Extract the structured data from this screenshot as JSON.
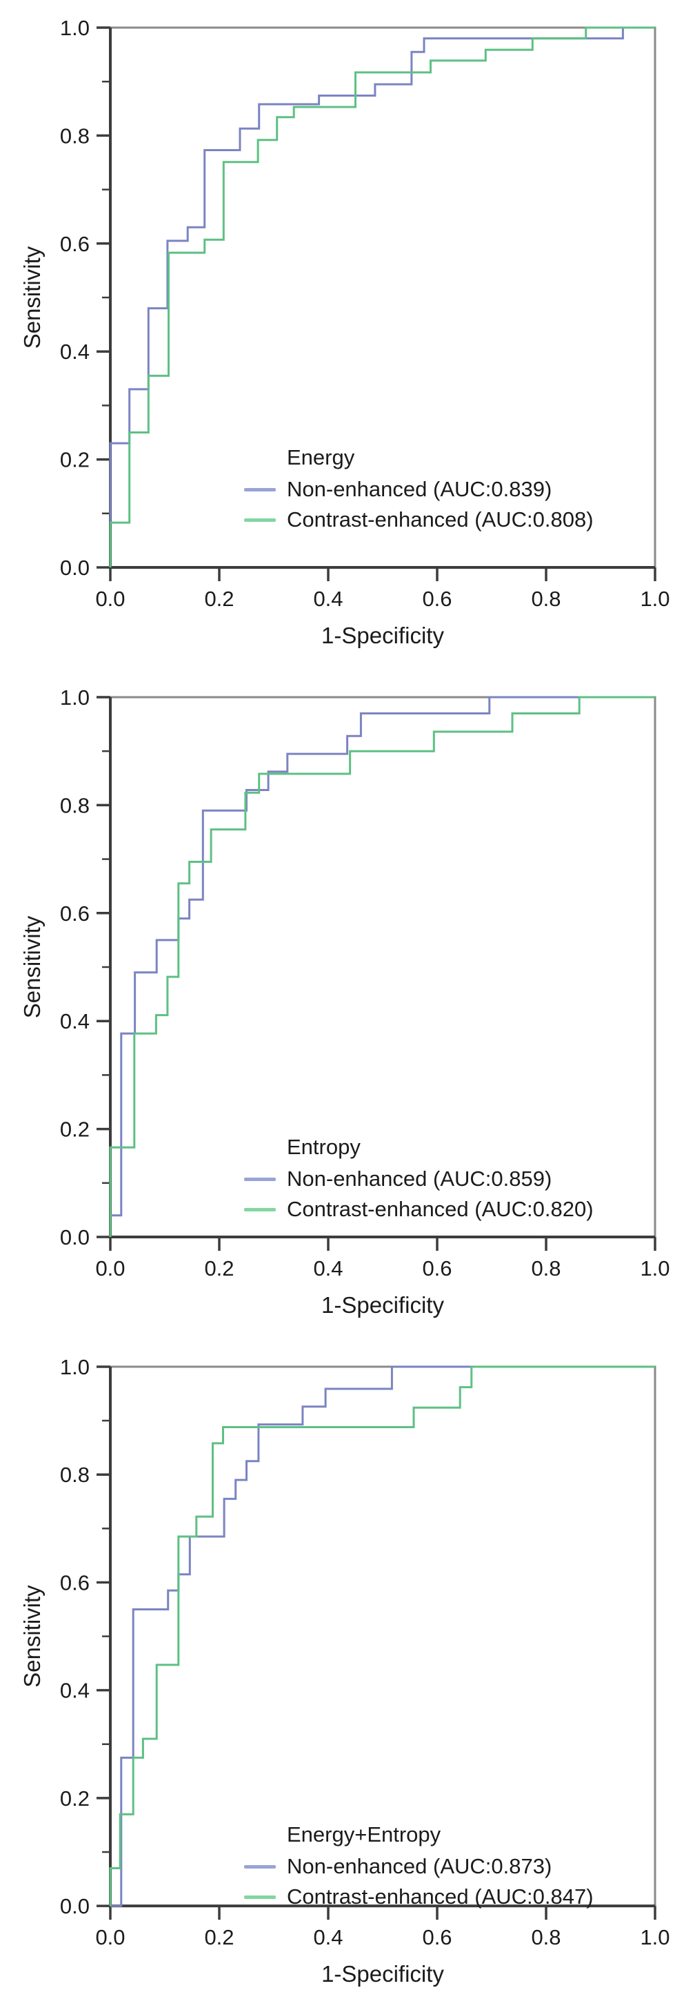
{
  "style": {
    "frame_color": "#8a8a8a",
    "axis_color": "#3c3c3c",
    "text_color": "#1b1b1b",
    "background": "#ffffff",
    "non_enhanced_color": "#7b84c2",
    "contrast_enhanced_color": "#5ec084"
  },
  "chart_data": [
    {
      "type": "line",
      "subtype": "roc_step_curve",
      "title": "Energy",
      "xlabel": "1-Specificity",
      "ylabel": "Sensitivity",
      "x_range": [
        0,
        1
      ],
      "y_range": [
        0,
        1
      ],
      "x_ticks": [
        "0.0",
        "0.2",
        "0.4",
        "0.6",
        "0.8",
        "1.0"
      ],
      "y_ticks": [
        "0.0",
        "0.2",
        "0.4",
        "0.6",
        "0.8",
        "1.0"
      ],
      "y_minor_ticks": [
        0.1,
        0.3,
        0.5,
        0.7,
        0.9
      ],
      "grid": false,
      "legend_position": "inside-lower-right",
      "series": [
        {
          "name": "Non-enhanced",
          "auc": 0.839,
          "label": "Non-enhanced (AUC:0.839)",
          "color": "#7b84c2",
          "legend_color": "#9aa3d8",
          "points": [
            [
              0,
              0
            ],
            [
              0,
              0.23
            ],
            [
              0.035,
              0.23
            ],
            [
              0.035,
              0.33
            ],
            [
              0.07,
              0.33
            ],
            [
              0.07,
              0.48
            ],
            [
              0.105,
              0.48
            ],
            [
              0.105,
              0.605
            ],
            [
              0.142,
              0.605
            ],
            [
              0.142,
              0.63
            ],
            [
              0.173,
              0.63
            ],
            [
              0.173,
              0.773
            ],
            [
              0.238,
              0.773
            ],
            [
              0.238,
              0.813
            ],
            [
              0.273,
              0.813
            ],
            [
              0.273,
              0.858
            ],
            [
              0.383,
              0.858
            ],
            [
              0.383,
              0.874
            ],
            [
              0.486,
              0.874
            ],
            [
              0.486,
              0.895
            ],
            [
              0.553,
              0.895
            ],
            [
              0.553,
              0.955
            ],
            [
              0.576,
              0.955
            ],
            [
              0.576,
              0.98
            ],
            [
              0.941,
              0.98
            ],
            [
              0.941,
              1
            ],
            [
              1,
              1
            ]
          ]
        },
        {
          "name": "Contrast-enhanced",
          "auc": 0.808,
          "label": "Contrast-enhanced (AUC:0.808)",
          "color": "#5ec084",
          "legend_color": "#82d6a2",
          "points": [
            [
              0,
              0
            ],
            [
              0,
              0.083
            ],
            [
              0.035,
              0.083
            ],
            [
              0.035,
              0.25
            ],
            [
              0.07,
              0.25
            ],
            [
              0.07,
              0.355
            ],
            [
              0.107,
              0.355
            ],
            [
              0.107,
              0.583
            ],
            [
              0.173,
              0.583
            ],
            [
              0.173,
              0.607
            ],
            [
              0.208,
              0.607
            ],
            [
              0.208,
              0.751
            ],
            [
              0.271,
              0.751
            ],
            [
              0.271,
              0.792
            ],
            [
              0.306,
              0.792
            ],
            [
              0.306,
              0.834
            ],
            [
              0.337,
              0.834
            ],
            [
              0.337,
              0.853
            ],
            [
              0.45,
              0.853
            ],
            [
              0.45,
              0.917
            ],
            [
              0.588,
              0.917
            ],
            [
              0.588,
              0.939
            ],
            [
              0.689,
              0.939
            ],
            [
              0.689,
              0.959
            ],
            [
              0.775,
              0.959
            ],
            [
              0.775,
              0.98
            ],
            [
              0.873,
              0.98
            ],
            [
              0.873,
              1
            ],
            [
              1,
              1
            ]
          ]
        }
      ]
    },
    {
      "type": "line",
      "subtype": "roc_step_curve",
      "title": "Entropy",
      "xlabel": "1-Specificity",
      "ylabel": "Sensitivity",
      "x_range": [
        0,
        1
      ],
      "y_range": [
        0,
        1
      ],
      "x_ticks": [
        "0.0",
        "0.2",
        "0.4",
        "0.6",
        "0.8",
        "1.0"
      ],
      "y_ticks": [
        "0.0",
        "0.2",
        "0.4",
        "0.6",
        "0.8",
        "1.0"
      ],
      "y_minor_ticks": [
        0.1,
        0.3,
        0.5,
        0.7,
        0.9
      ],
      "grid": false,
      "legend_position": "inside-lower-right",
      "series": [
        {
          "name": "Non-enhanced",
          "auc": 0.859,
          "label": "Non-enhanced (AUC:0.859)",
          "color": "#7b84c2",
          "legend_color": "#9aa3d8",
          "points": [
            [
              0,
              0
            ],
            [
              0,
              0.04
            ],
            [
              0.02,
              0.04
            ],
            [
              0.02,
              0.377
            ],
            [
              0.045,
              0.377
            ],
            [
              0.045,
              0.49
            ],
            [
              0.085,
              0.49
            ],
            [
              0.085,
              0.55
            ],
            [
              0.125,
              0.55
            ],
            [
              0.125,
              0.59
            ],
            [
              0.145,
              0.59
            ],
            [
              0.145,
              0.625
            ],
            [
              0.17,
              0.625
            ],
            [
              0.17,
              0.79
            ],
            [
              0.25,
              0.79
            ],
            [
              0.25,
              0.828
            ],
            [
              0.29,
              0.828
            ],
            [
              0.29,
              0.862
            ],
            [
              0.325,
              0.862
            ],
            [
              0.325,
              0.895
            ],
            [
              0.435,
              0.895
            ],
            [
              0.435,
              0.928
            ],
            [
              0.46,
              0.928
            ],
            [
              0.46,
              0.97
            ],
            [
              0.696,
              0.97
            ],
            [
              0.696,
              1
            ],
            [
              1,
              1
            ]
          ]
        },
        {
          "name": "Contrast-enhanced",
          "auc": 0.82,
          "label": "Contrast-enhanced (AUC:0.820)",
          "color": "#5ec084",
          "legend_color": "#82d6a2",
          "points": [
            [
              0,
              0
            ],
            [
              0,
              0.166
            ],
            [
              0.044,
              0.166
            ],
            [
              0.044,
              0.377
            ],
            [
              0.084,
              0.377
            ],
            [
              0.084,
              0.411
            ],
            [
              0.105,
              0.411
            ],
            [
              0.105,
              0.482
            ],
            [
              0.125,
              0.482
            ],
            [
              0.125,
              0.655
            ],
            [
              0.145,
              0.655
            ],
            [
              0.145,
              0.695
            ],
            [
              0.185,
              0.695
            ],
            [
              0.185,
              0.755
            ],
            [
              0.248,
              0.755
            ],
            [
              0.248,
              0.823
            ],
            [
              0.273,
              0.823
            ],
            [
              0.273,
              0.858
            ],
            [
              0.44,
              0.858
            ],
            [
              0.44,
              0.9
            ],
            [
              0.594,
              0.9
            ],
            [
              0.594,
              0.936
            ],
            [
              0.738,
              0.936
            ],
            [
              0.738,
              0.97
            ],
            [
              0.861,
              0.97
            ],
            [
              0.861,
              1
            ],
            [
              1,
              1
            ]
          ]
        }
      ]
    },
    {
      "type": "line",
      "subtype": "roc_step_curve",
      "title": "Energy+Entropy",
      "xlabel": "1-Specificity",
      "ylabel": "Sensitivity",
      "x_range": [
        0,
        1
      ],
      "y_range": [
        0,
        1
      ],
      "x_ticks": [
        "0.0",
        "0.2",
        "0.4",
        "0.6",
        "0.8",
        "1.0"
      ],
      "y_ticks": [
        "0.0",
        "0.2",
        "0.4",
        "0.6",
        "0.8",
        "1.0"
      ],
      "y_minor_ticks": [
        0.1,
        0.3,
        0.5,
        0.7,
        0.9
      ],
      "grid": false,
      "legend_position": "inside-lower-right",
      "series": [
        {
          "name": "Non-enhanced",
          "auc": 0.873,
          "label": "Non-enhanced (AUC:0.873)",
          "color": "#7b84c2",
          "legend_color": "#9aa3d8",
          "points": [
            [
              0,
              0
            ],
            [
              0.02,
              0
            ],
            [
              0.02,
              0.275
            ],
            [
              0.042,
              0.275
            ],
            [
              0.042,
              0.55
            ],
            [
              0.106,
              0.55
            ],
            [
              0.106,
              0.585
            ],
            [
              0.125,
              0.585
            ],
            [
              0.125,
              0.615
            ],
            [
              0.146,
              0.615
            ],
            [
              0.146,
              0.685
            ],
            [
              0.209,
              0.685
            ],
            [
              0.209,
              0.755
            ],
            [
              0.23,
              0.755
            ],
            [
              0.23,
              0.79
            ],
            [
              0.25,
              0.79
            ],
            [
              0.25,
              0.825
            ],
            [
              0.272,
              0.825
            ],
            [
              0.272,
              0.893
            ],
            [
              0.353,
              0.893
            ],
            [
              0.353,
              0.926
            ],
            [
              0.395,
              0.926
            ],
            [
              0.395,
              0.959
            ],
            [
              0.517,
              0.959
            ],
            [
              0.517,
              1
            ],
            [
              1,
              1
            ]
          ]
        },
        {
          "name": "Contrast-enhanced",
          "auc": 0.847,
          "label": "Contrast-enhanced (AUC:0.847)",
          "color": "#5ec084",
          "legend_color": "#82d6a2",
          "points": [
            [
              0,
              0
            ],
            [
              0,
              0.07
            ],
            [
              0.018,
              0.07
            ],
            [
              0.018,
              0.17
            ],
            [
              0.042,
              0.17
            ],
            [
              0.042,
              0.275
            ],
            [
              0.06,
              0.275
            ],
            [
              0.06,
              0.31
            ],
            [
              0.085,
              0.31
            ],
            [
              0.085,
              0.447
            ],
            [
              0.125,
              0.447
            ],
            [
              0.125,
              0.685
            ],
            [
              0.158,
              0.685
            ],
            [
              0.158,
              0.722
            ],
            [
              0.188,
              0.722
            ],
            [
              0.188,
              0.858
            ],
            [
              0.207,
              0.858
            ],
            [
              0.207,
              0.888
            ],
            [
              0.557,
              0.888
            ],
            [
              0.557,
              0.924
            ],
            [
              0.642,
              0.924
            ],
            [
              0.642,
              0.962
            ],
            [
              0.663,
              0.962
            ],
            [
              0.663,
              1
            ],
            [
              1,
              1
            ]
          ]
        }
      ]
    }
  ]
}
